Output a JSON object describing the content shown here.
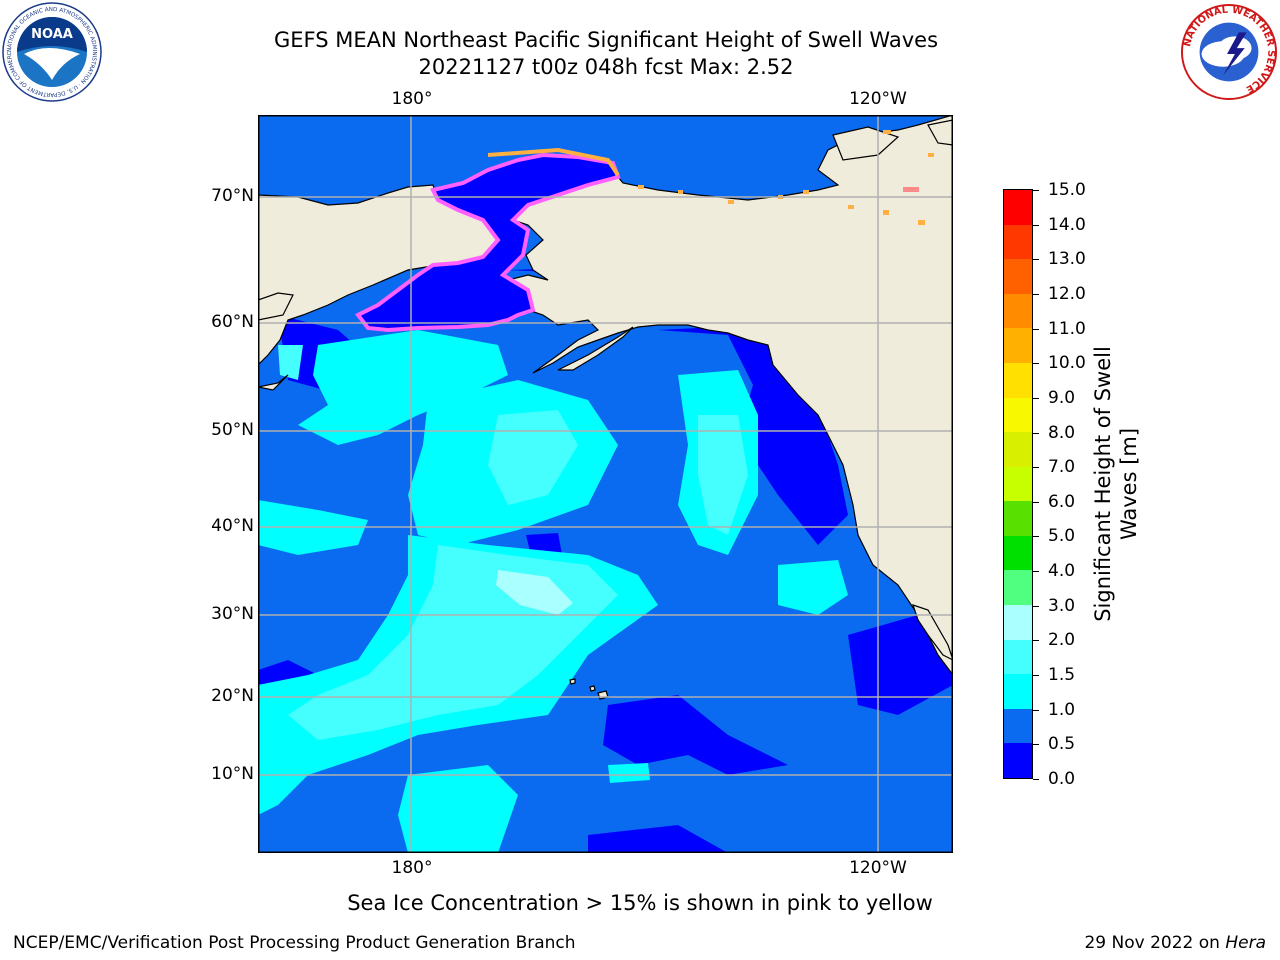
{
  "header": {
    "title_line1": "GEFS MEAN Northeast Pacific Significant Height of Swell Waves",
    "title_line2": "20221127 t00z 048h fcst   Max: 2.52"
  },
  "map": {
    "lon_labels_top": [
      "180°",
      "120°W"
    ],
    "lon_labels_bottom": [
      "180°",
      "120°W"
    ],
    "lat_labels": [
      "70°N",
      "60°N",
      "50°N",
      "40°N",
      "30°N",
      "20°N",
      "10°N"
    ],
    "colors": {
      "land": "#efecdc",
      "ice_pink": "#ff60ff",
      "ice_yellow": "#ffb040",
      "grid": "#b0b0b0"
    }
  },
  "colorbar": {
    "label": "Significant Height of Swell Waves [m]",
    "label_line1": "Significant Height of Swell",
    "label_line2": "Waves [m]",
    "ticks": [
      "15.0",
      "14.0",
      "13.0",
      "12.0",
      "11.0",
      "10.0",
      "9.0",
      "8.0",
      "7.0",
      "6.0",
      "5.0",
      "4.0",
      "3.0",
      "2.0",
      "1.5",
      "1.0",
      "0.5",
      "0.0"
    ],
    "colors_bottom_to_top": [
      "#0000ff",
      "#0a6af0",
      "#00ffff",
      "#45ffff",
      "#aaffff",
      "#50ff80",
      "#00e000",
      "#58e000",
      "#c8ff00",
      "#d8f000",
      "#f8f800",
      "#ffe000",
      "#ffb000",
      "#ff8c00",
      "#ff6000",
      "#ff3800",
      "#ff0000"
    ]
  },
  "note": "Sea Ice Concentration > 15% is shown in pink to yellow",
  "footer": {
    "left": "NCEP/EMC/Verification Post Processing Product Generation Branch",
    "right_date": "29 Nov 2022 on ",
    "right_host": "Hera"
  },
  "logos": {
    "noaa_text": "NOAA",
    "noaa_ring": "NATIONAL OCEANIC AND ATMOSPHERIC ADMINISTRATION · U.S. DEPARTMENT OF COMMERCE",
    "nws_ring": "NATIONAL WEATHER SERVICE"
  }
}
